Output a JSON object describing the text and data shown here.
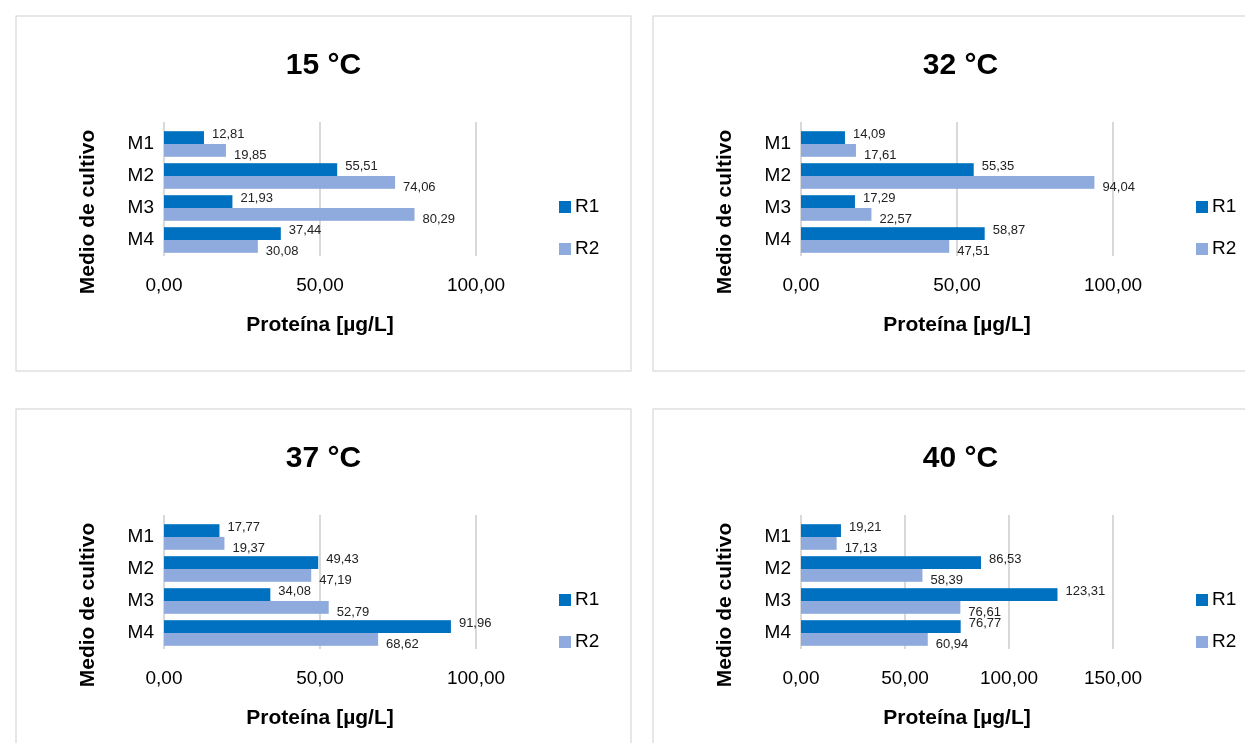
{
  "chart_data": [
    {
      "type": "bar",
      "orientation": "horizontal",
      "title": "15 °C",
      "xlabel": "Proteína [µg/L]",
      "ylabel": "Medio de cultivo",
      "categories": [
        "M1",
        "M2",
        "M3",
        "M4"
      ],
      "series": [
        {
          "name": "R1",
          "color": "#0070c0",
          "values": [
            12.81,
            55.51,
            21.93,
            37.44
          ],
          "value_labels": [
            "12,81",
            "55,51",
            "21,93",
            "37,44"
          ]
        },
        {
          "name": "R2",
          "color": "#8faadc",
          "values": [
            19.85,
            74.06,
            80.29,
            30.08
          ],
          "value_labels": [
            "19,85",
            "74,06",
            "80,29",
            "30,08"
          ]
        }
      ],
      "xlim": [
        0,
        100
      ],
      "xticks": [
        {
          "value": 0,
          "label": "0,00"
        },
        {
          "value": 50,
          "label": "50,00"
        },
        {
          "value": 100,
          "label": "100,00"
        }
      ],
      "grid": "x",
      "legend": "right"
    },
    {
      "type": "bar",
      "orientation": "horizontal",
      "title": "32 °C",
      "xlabel": "Proteína [µg/L]",
      "ylabel": "Medio de cultivo",
      "categories": [
        "M1",
        "M2",
        "M3",
        "M4"
      ],
      "series": [
        {
          "name": "R1",
          "color": "#0070c0",
          "values": [
            14.09,
            55.35,
            17.29,
            58.87
          ],
          "value_labels": [
            "14,09",
            "55,35",
            "17,29",
            "58,87"
          ]
        },
        {
          "name": "R2",
          "color": "#8faadc",
          "values": [
            17.61,
            94.04,
            22.57,
            47.51
          ],
          "value_labels": [
            "17,61",
            "94,04",
            "22,57",
            "47,51"
          ]
        }
      ],
      "xlim": [
        0,
        100
      ],
      "xticks": [
        {
          "value": 0,
          "label": "0,00"
        },
        {
          "value": 50,
          "label": "50,00"
        },
        {
          "value": 100,
          "label": "100,00"
        }
      ],
      "grid": "x",
      "legend": "right"
    },
    {
      "type": "bar",
      "orientation": "horizontal",
      "title": "37 °C",
      "xlabel": "Proteína [µg/L]",
      "ylabel": "Medio de cultivo",
      "categories": [
        "M1",
        "M2",
        "M3",
        "M4"
      ],
      "series": [
        {
          "name": "R1",
          "color": "#0070c0",
          "values": [
            17.77,
            49.43,
            34.08,
            91.96
          ],
          "value_labels": [
            "17,77",
            "49,43",
            "34,08",
            "91,96"
          ]
        },
        {
          "name": "R2",
          "color": "#8faadc",
          "values": [
            19.37,
            47.19,
            52.79,
            68.62
          ],
          "value_labels": [
            "19,37",
            "47,19",
            "52,79",
            "68,62"
          ]
        }
      ],
      "xlim": [
        0,
        100
      ],
      "xticks": [
        {
          "value": 0,
          "label": "0,00"
        },
        {
          "value": 50,
          "label": "50,00"
        },
        {
          "value": 100,
          "label": "100,00"
        }
      ],
      "grid": "x",
      "legend": "right"
    },
    {
      "type": "bar",
      "orientation": "horizontal",
      "title": "40 °C",
      "xlabel": "Proteína [µg/L]",
      "ylabel": "Medio de cultivo",
      "categories": [
        "M1",
        "M2",
        "M3",
        "M4"
      ],
      "series": [
        {
          "name": "R1",
          "color": "#0070c0",
          "values": [
            19.21,
            86.53,
            123.31,
            76.77
          ],
          "value_labels": [
            "19,21",
            "86,53",
            "123,31",
            "76,77"
          ]
        },
        {
          "name": "R2",
          "color": "#8faadc",
          "values": [
            17.13,
            58.39,
            76.61,
            60.94
          ],
          "value_labels": [
            "17,13",
            "58,39",
            "76,61",
            "60,94"
          ]
        }
      ],
      "xlim": [
        0,
        150
      ],
      "xticks": [
        {
          "value": 0,
          "label": "0,00"
        },
        {
          "value": 50,
          "label": "50,00"
        },
        {
          "value": 100,
          "label": "100,00"
        },
        {
          "value": 150,
          "label": "150,00"
        }
      ],
      "grid": "x",
      "legend": "right"
    }
  ]
}
